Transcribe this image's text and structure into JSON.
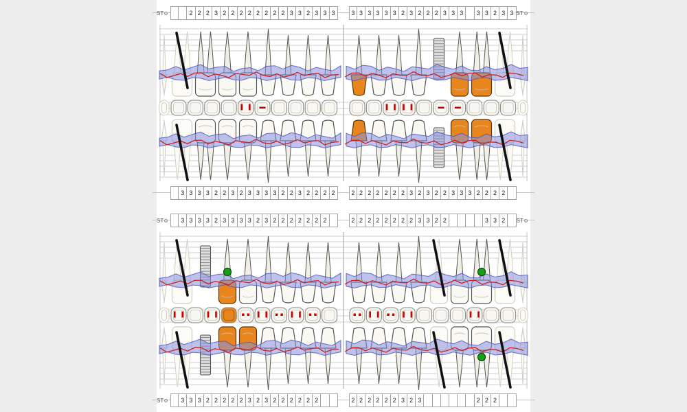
{
  "labels": {
    "st": "ST"
  },
  "icons": {
    "st_marker": "small-circle-outline"
  },
  "colors": {
    "band": "#8890dd",
    "band_edge": "#4a55b8",
    "red_line": "#cc2222",
    "orange": "#e8851c",
    "green": "#14a014",
    "black": "#111111",
    "grid": "#cfcfcf",
    "tooth_stroke": "#55554f",
    "tooth_fill": "#faf9f4",
    "root_fill": "#f1efe8",
    "ghost": "#cfcfc4",
    "implant_fill": "#dedede",
    "occlusal_mark": "#cc0000",
    "margin_shade": "#ededed"
  },
  "strips": [
    {
      "id": "maxillary-top",
      "st_left": true,
      "st_right": true,
      "left": [
        "",
        "",
        "2",
        "2",
        "2",
        "3",
        "2",
        "2",
        "2",
        "2",
        "2",
        "2",
        "2",
        "2",
        "3",
        "3",
        "2",
        "3",
        "3",
        "3"
      ],
      "right": [
        "3",
        "3",
        "3",
        "3",
        "3",
        "3",
        "2",
        "3",
        "2",
        "2",
        "2",
        "3",
        "3",
        "3",
        "",
        "3",
        "3",
        "2",
        "3",
        "3"
      ]
    },
    {
      "id": "maxillary-bottom",
      "st_left": false,
      "st_right": false,
      "left": [
        "",
        "3",
        "3",
        "3",
        "3",
        "2",
        "2",
        "3",
        "2",
        "3",
        "3",
        "3",
        "3",
        "2",
        "2",
        "3",
        "2",
        "2",
        "2",
        "2"
      ],
      "right": [
        "2",
        "2",
        "2",
        "2",
        "2",
        "2",
        "2",
        "3",
        "2",
        "3",
        "2",
        "2",
        "3",
        "3",
        "3",
        "2",
        "2",
        "2",
        "2",
        ""
      ]
    },
    {
      "id": "mandibular-top",
      "st_left": true,
      "st_right": true,
      "left": [
        "",
        "3",
        "3",
        "3",
        "3",
        "2",
        "3",
        "3",
        "3",
        "3",
        "2",
        "3",
        "2",
        "2",
        "2",
        "2",
        "2",
        "2",
        "2",
        ""
      ],
      "right": [
        "2",
        "2",
        "2",
        "2",
        "2",
        "2",
        "2",
        "2",
        "3",
        "3",
        "2",
        "2",
        "",
        "",
        "",
        "",
        "3",
        "3",
        "2",
        ""
      ]
    },
    {
      "id": "mandibular-bottom",
      "st_left": true,
      "st_right": false,
      "left": [
        "",
        "3",
        "3",
        "3",
        "2",
        "2",
        "2",
        "2",
        "2",
        "3",
        "2",
        "3",
        "2",
        "2",
        "2",
        "2",
        "2",
        "2",
        "",
        ""
      ],
      "right": [
        "2",
        "2",
        "2",
        "2",
        "2",
        "2",
        "3",
        "2",
        "3",
        "",
        "",
        "",
        "",
        "",
        "",
        "2",
        "2",
        "2",
        "",
        ""
      ]
    }
  ],
  "panels": [
    {
      "name": "maxillary",
      "buccal": {
        "left": [
          {
            "k": "molar",
            "s": "missing"
          },
          {
            "k": "molar"
          },
          {
            "k": "premolar"
          },
          {
            "k": "premolar"
          },
          {
            "k": "canine"
          },
          {
            "k": "incisor"
          },
          {
            "k": "incisor"
          },
          {
            "k": "incisor"
          }
        ],
        "right": [
          {
            "k": "incisor",
            "s": "orange"
          },
          {
            "k": "incisor"
          },
          {
            "k": "incisor"
          },
          {
            "k": "canine"
          },
          {
            "k": "premolar",
            "s": "implant"
          },
          {
            "k": "premolar",
            "s": "orange"
          },
          {
            "k": "molar",
            "s": "orange"
          },
          {
            "k": "molar",
            "s": "missing"
          }
        ]
      },
      "occlusal": {
        "left": [
          "",
          "",
          "",
          "",
          "vbars",
          "hdash",
          "",
          "",
          "",
          ""
        ],
        "right": [
          "",
          "",
          "vbars",
          "vbars",
          "",
          "hdash",
          "hdash",
          "",
          "",
          ""
        ]
      },
      "lingual": {
        "left": [
          {
            "k": "molar",
            "s": "missing"
          },
          {
            "k": "molar"
          },
          {
            "k": "premolar"
          },
          {
            "k": "premolar"
          },
          {
            "k": "canine"
          },
          {
            "k": "incisor"
          },
          {
            "k": "incisor"
          },
          {
            "k": "incisor"
          }
        ],
        "right": [
          {
            "k": "incisor",
            "s": "orange"
          },
          {
            "k": "incisor"
          },
          {
            "k": "incisor"
          },
          {
            "k": "canine"
          },
          {
            "k": "premolar",
            "s": "implant"
          },
          {
            "k": "premolar",
            "s": "orange"
          },
          {
            "k": "molar",
            "s": "orange"
          },
          {
            "k": "molar",
            "s": "missing"
          }
        ]
      }
    },
    {
      "name": "mandibular",
      "buccal": {
        "left": [
          {
            "k": "molar",
            "s": "missing"
          },
          {
            "k": "molar",
            "s": "implant"
          },
          {
            "k": "premolar",
            "s": "orange",
            "dot": true
          },
          {
            "k": "premolar"
          },
          {
            "k": "canine"
          },
          {
            "k": "incisor"
          },
          {
            "k": "incisor"
          },
          {
            "k": "incisor"
          }
        ],
        "right": [
          {
            "k": "incisor"
          },
          {
            "k": "incisor"
          },
          {
            "k": "incisor"
          },
          {
            "k": "canine"
          },
          {
            "k": "premolar",
            "s": "missing"
          },
          {
            "k": "premolar"
          },
          {
            "k": "molar",
            "dot": true
          },
          {
            "k": "molar",
            "s": "missing"
          }
        ]
      },
      "occlusal": {
        "left": [
          "vbars",
          "",
          "vbars",
          "orange",
          "dots",
          "vbars",
          "dots",
          "vbars",
          "dots",
          ""
        ],
        "right": [
          "dots",
          "vbars",
          "dots",
          "vbars",
          "",
          "",
          "",
          "vbars",
          "",
          ""
        ]
      },
      "lingual": {
        "left": [
          {
            "k": "molar",
            "s": "missing"
          },
          {
            "k": "molar",
            "s": "implant"
          },
          {
            "k": "premolar",
            "s": "orange"
          },
          {
            "k": "premolar",
            "s": "orange"
          },
          {
            "k": "canine"
          },
          {
            "k": "incisor"
          },
          {
            "k": "incisor"
          },
          {
            "k": "incisor"
          }
        ],
        "right": [
          {
            "k": "incisor"
          },
          {
            "k": "incisor"
          },
          {
            "k": "incisor"
          },
          {
            "k": "canine"
          },
          {
            "k": "premolar",
            "s": "missing"
          },
          {
            "k": "premolar"
          },
          {
            "k": "molar",
            "dot": true
          },
          {
            "k": "molar",
            "s": "missing"
          }
        ]
      }
    }
  ]
}
